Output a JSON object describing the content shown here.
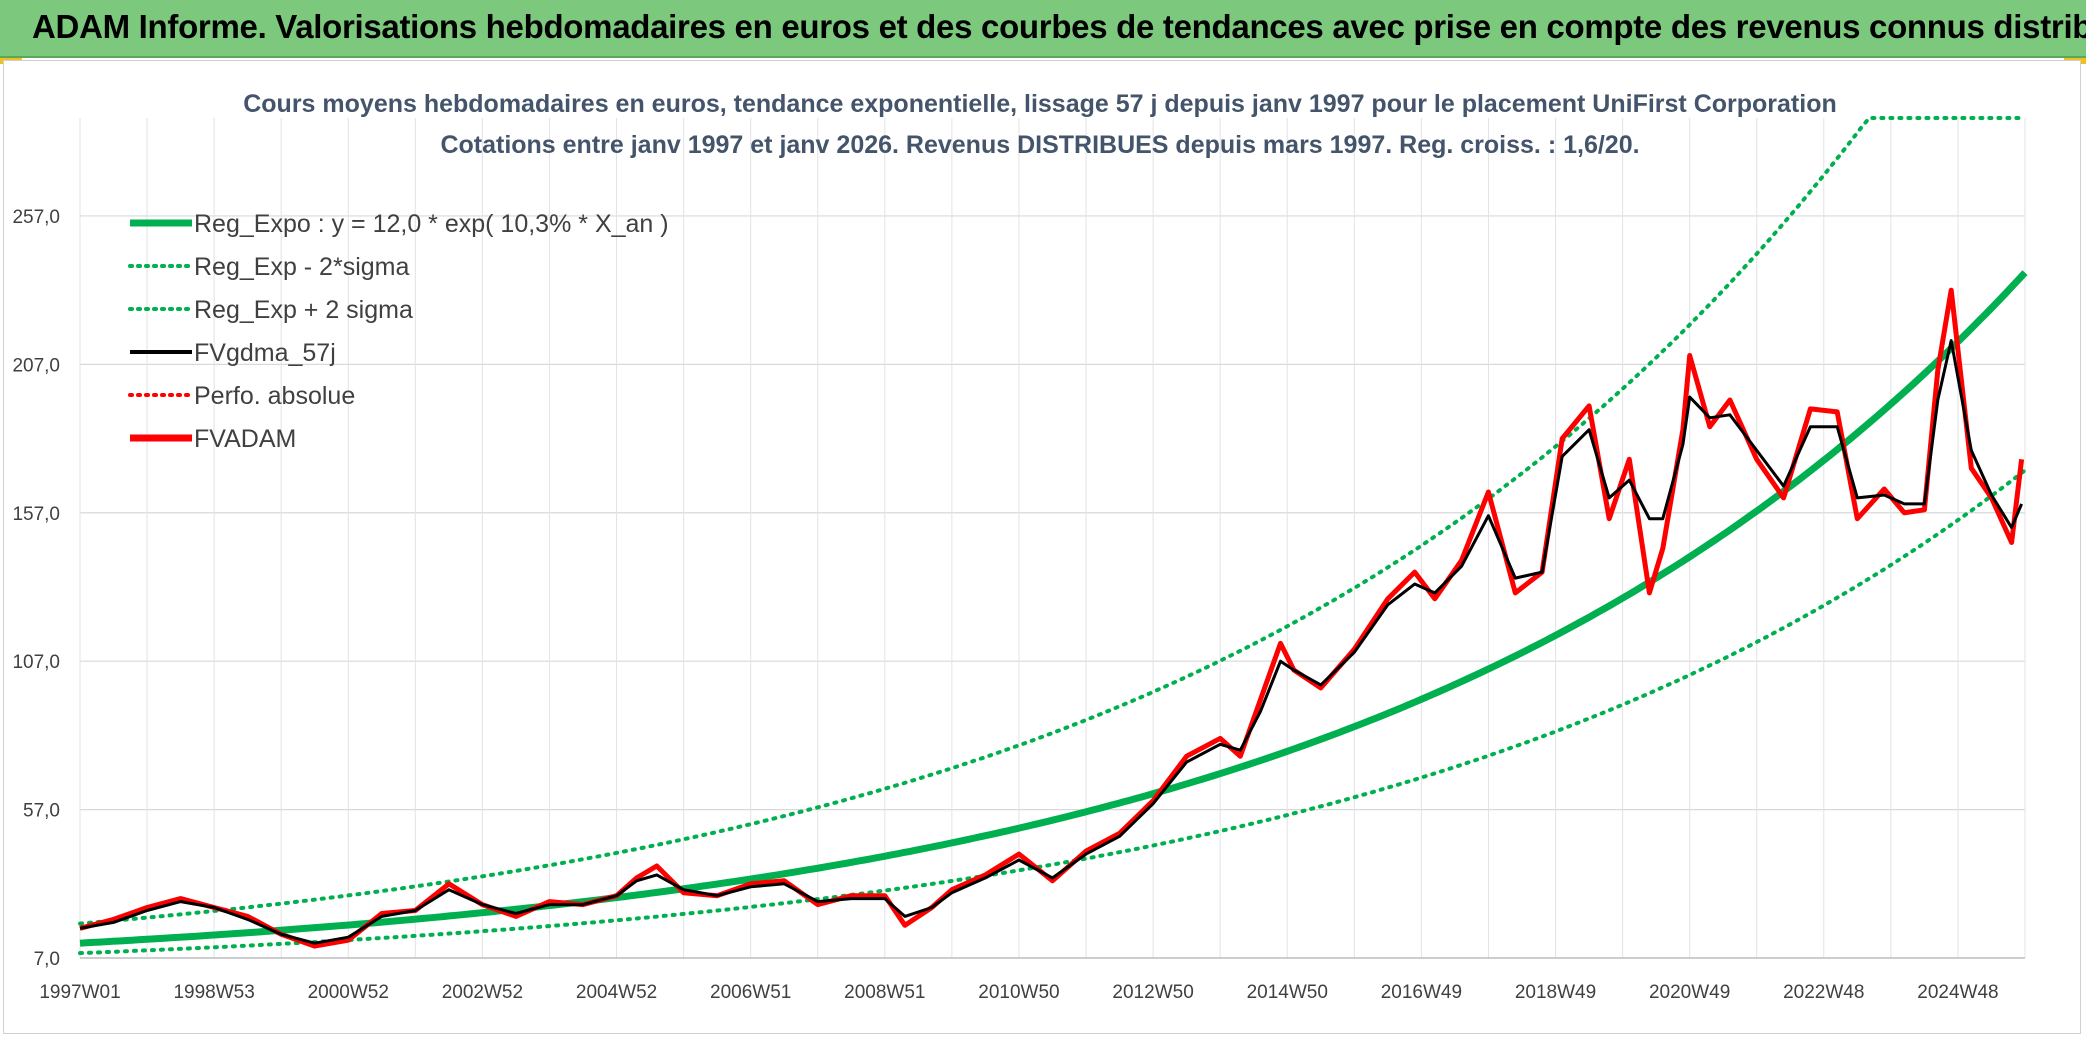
{
  "banner": {
    "title": "ADAM Informe. Valorisations hebdomadaires en euros et des courbes de tendances avec prise en compte des revenus connus distribués"
  },
  "colors": {
    "banner_bg": "#7cc87c",
    "trend_green": "#00b050",
    "price_red": "#ff0000",
    "smooth_black": "#000000",
    "title_text": "#44546a"
  },
  "chart_data": {
    "type": "line",
    "title": "Cours moyens hebdomadaires en euros, tendance exponentielle, lissage 57 j depuis janv 1997 pour le placement UniFirst Corporation",
    "subtitle": "Cotations entre janv 1997 et janv 2026. Revenus DISTRIBUES depuis mars 1997. Reg. croiss. : 1,6/20.",
    "xlabel": "",
    "ylabel": "",
    "x_range": [
      1997.0,
      2026.0
    ],
    "ylim": [
      7.0,
      290.0
    ],
    "y_ticks": [
      "7,0",
      "57,0",
      "107,0",
      "157,0",
      "207,0",
      "257,0"
    ],
    "y_tick_values": [
      7,
      57,
      107,
      157,
      207,
      257
    ],
    "x_tick_labels": [
      "1997W01",
      "1998W53",
      "2000W52",
      "2002W52",
      "2004W52",
      "2006W51",
      "2008W51",
      "2010W50",
      "2012W50",
      "2014W50",
      "2016W49",
      "2018W49",
      "2020W49",
      "2022W48",
      "2024W48"
    ],
    "x_tick_values": [
      1997.0,
      1999.0,
      2001.0,
      2003.0,
      2005.0,
      2007.0,
      2009.0,
      2011.0,
      2013.0,
      2015.0,
      2017.0,
      2019.0,
      2021.0,
      2023.0,
      2025.0
    ],
    "grid": true,
    "legend_position": "top-left",
    "legend": [
      {
        "label": "Reg_Expo : y = 12,0 * exp( 10,3% *  X_an )",
        "style": "solid-thick",
        "color": "#00b050"
      },
      {
        "label": "Reg_Exp - 2*sigma",
        "style": "dotted",
        "color": "#00b050"
      },
      {
        "label": "Reg_Exp + 2 sigma",
        "style": "dotted",
        "color": "#00b050"
      },
      {
        "label": "FVgdma_57j",
        "style": "solid",
        "color": "#000000"
      },
      {
        "label": "Perfo. absolue",
        "style": "dotted",
        "color": "#ff0000"
      },
      {
        "label": "FVADAM",
        "style": "solid-thick",
        "color": "#ff0000"
      }
    ],
    "trend": {
      "a": 12.0,
      "b": 0.103,
      "lower_factor": 0.72,
      "upper_factor": 1.55,
      "upper_clip": 290.0
    },
    "series": [
      {
        "name": "FVADAM",
        "x": [
          1997.0,
          1997.5,
          1998.0,
          1998.5,
          1999.0,
          1999.5,
          2000.0,
          2000.5,
          2001.0,
          2001.5,
          2002.0,
          2002.5,
          2003.0,
          2003.5,
          2004.0,
          2004.5,
          2005.0,
          2005.3,
          2005.6,
          2006.0,
          2006.5,
          2007.0,
          2007.5,
          2008.0,
          2008.5,
          2009.0,
          2009.3,
          2009.7,
          2010.0,
          2010.5,
          2011.0,
          2011.5,
          2012.0,
          2012.5,
          2013.0,
          2013.5,
          2014.0,
          2014.3,
          2014.6,
          2014.9,
          2015.1,
          2015.5,
          2016.0,
          2016.5,
          2016.9,
          2017.2,
          2017.6,
          2018.0,
          2018.4,
          2018.8,
          2019.1,
          2019.5,
          2019.8,
          2020.1,
          2020.4,
          2020.6,
          2020.9,
          2021.0,
          2021.3,
          2021.6,
          2022.0,
          2022.4,
          2022.8,
          2023.2,
          2023.5,
          2023.9,
          2024.2,
          2024.5,
          2024.7,
          2024.9,
          2025.2,
          2025.5,
          2025.8,
          2025.95
        ],
        "y": [
          17,
          20,
          24,
          27,
          24,
          21,
          15,
          11,
          13,
          22,
          23,
          32,
          25,
          21,
          26,
          25,
          28,
          34,
          38,
          29,
          28,
          32,
          33,
          25,
          28,
          28,
          18,
          24,
          30,
          35,
          42,
          33,
          43,
          49,
          60,
          75,
          81,
          75,
          94,
          113,
          104,
          98,
          111,
          128,
          137,
          128,
          141,
          164,
          130,
          137,
          182,
          193,
          155,
          175,
          130,
          145,
          185,
          210,
          186,
          195,
          175,
          162,
          192,
          191,
          155,
          165,
          157,
          158,
          205,
          232,
          172,
          162,
          147,
          175
        ]
      },
      {
        "name": "FVgdma_57j",
        "x": [
          1997.0,
          1997.5,
          1998.0,
          1998.5,
          1999.0,
          1999.5,
          2000.0,
          2000.5,
          2001.0,
          2001.5,
          2002.0,
          2002.5,
          2003.0,
          2003.5,
          2004.0,
          2004.5,
          2005.0,
          2005.3,
          2005.6,
          2006.0,
          2006.5,
          2007.0,
          2007.5,
          2008.0,
          2008.5,
          2009.0,
          2009.3,
          2009.7,
          2010.0,
          2010.5,
          2011.0,
          2011.5,
          2012.0,
          2012.5,
          2013.0,
          2013.5,
          2014.0,
          2014.3,
          2014.6,
          2014.9,
          2015.1,
          2015.5,
          2016.0,
          2016.5,
          2016.9,
          2017.2,
          2017.6,
          2018.0,
          2018.4,
          2018.8,
          2019.1,
          2019.5,
          2019.8,
          2020.1,
          2020.4,
          2020.6,
          2020.9,
          2021.0,
          2021.3,
          2021.6,
          2022.0,
          2022.4,
          2022.8,
          2023.2,
          2023.5,
          2023.9,
          2024.2,
          2024.5,
          2024.7,
          2024.9,
          2025.2,
          2025.5,
          2025.8,
          2025.95
        ],
        "y": [
          17,
          19,
          23,
          26,
          24,
          20,
          15,
          12,
          14,
          21,
          23,
          30,
          25,
          22,
          25,
          25,
          28,
          33,
          35,
          30,
          28,
          31,
          32,
          26,
          27,
          27,
          21,
          24,
          29,
          34,
          40,
          34,
          42,
          48,
          59,
          73,
          79,
          77,
          90,
          107,
          104,
          99,
          110,
          126,
          133,
          130,
          139,
          156,
          135,
          137,
          176,
          185,
          162,
          168,
          155,
          155,
          180,
          196,
          189,
          190,
          178,
          166,
          186,
          186,
          162,
          163,
          160,
          160,
          195,
          215,
          178,
          163,
          152,
          160
        ]
      }
    ]
  }
}
